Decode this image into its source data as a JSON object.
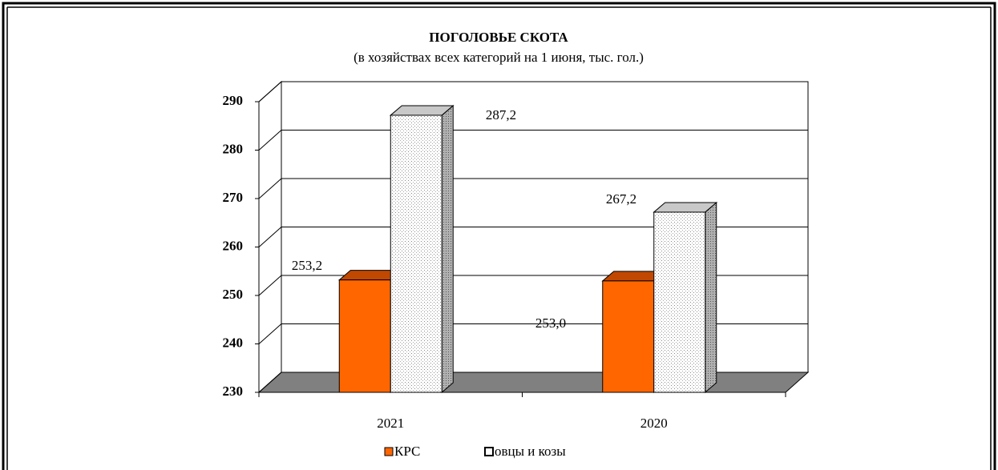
{
  "chart_data": {
    "type": "bar3d",
    "title": "ПОГОЛОВЬЕ СКОТА",
    "subtitle": "(в хозяйствах всех категорий на 1 июня, тыс. гол.)",
    "categories": [
      "2021",
      "2020"
    ],
    "series": [
      {
        "name": "КРС",
        "color": "#ff6600",
        "values": [
          253.2,
          253.0
        ],
        "value_labels": [
          "253,2",
          "253,0"
        ]
      },
      {
        "name": "овцы и козы",
        "color": "#ffffff",
        "values": [
          287.2,
          267.2
        ],
        "value_labels": [
          "287,2",
          "267,2"
        ]
      }
    ],
    "ylim": [
      230,
      290
    ],
    "yticks": [
      230,
      240,
      250,
      260,
      270,
      280,
      290
    ],
    "grid": true,
    "legend": "bottom"
  }
}
